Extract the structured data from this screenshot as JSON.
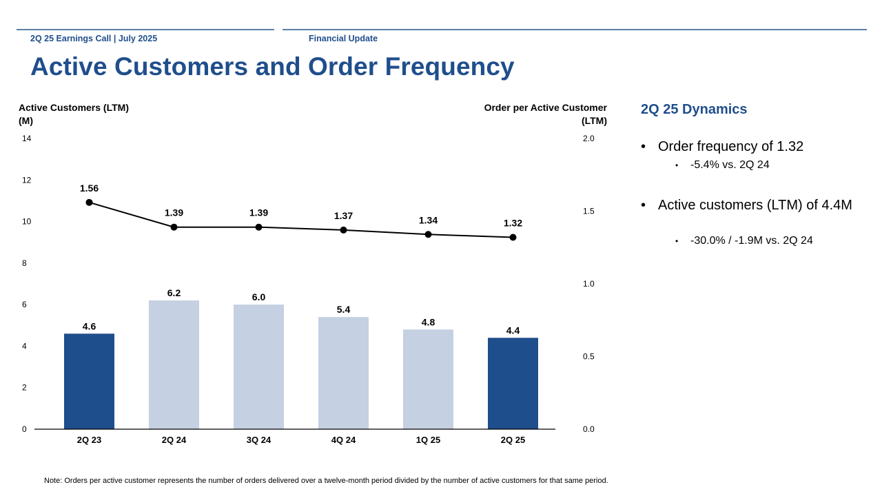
{
  "header": {
    "left_label": "2Q 25 Earnings Call | July 2025",
    "right_label": "Financial Update"
  },
  "title": "Active Customers and Order Frequency",
  "chart_data": {
    "type": "bar",
    "title": "",
    "categories": [
      "2Q 23",
      "2Q 24",
      "3Q 24",
      "4Q 24",
      "1Q 25",
      "2Q 25"
    ],
    "series": [
      {
        "name": "Active Customers (LTM)",
        "chart_type": "bar",
        "axis": "left",
        "values": [
          4.6,
          6.2,
          6.0,
          5.4,
          4.8,
          4.4
        ],
        "labels": [
          "4.6",
          "6.2",
          "6.0",
          "5.4",
          "4.8",
          "4.4"
        ],
        "highlighted": [
          true,
          false,
          false,
          false,
          false,
          true
        ]
      },
      {
        "name": "Order per Active Customer",
        "chart_type": "line",
        "axis": "right",
        "values": [
          1.56,
          1.39,
          1.39,
          1.37,
          1.34,
          1.32
        ],
        "labels": [
          "1.56",
          "1.39",
          "1.39",
          "1.37",
          "1.34",
          "1.32"
        ]
      }
    ],
    "y_left": {
      "label_line1": "Active Customers (LTM)",
      "label_line2": "(M)",
      "ylim": [
        0,
        14
      ],
      "ticks": [
        "0",
        "2",
        "4",
        "6",
        "8",
        "10",
        "12",
        "14"
      ]
    },
    "y_right": {
      "label_line1": "Order per Active Customer",
      "label_line2": "(LTM)",
      "ylim": [
        0,
        2.0
      ],
      "ticks": [
        "0.0",
        "0.5",
        "1.0",
        "1.5",
        "2.0"
      ]
    },
    "grid": false,
    "legend": "none",
    "colors": {
      "bar_highlight": "#1f4e8c",
      "bar_other": "#c5d0e2",
      "line": "#000000"
    }
  },
  "dynamics": {
    "title": "2Q 25 Dynamics",
    "bullets": [
      {
        "text": "Order frequency of 1.32",
        "sub": [
          "-5.4% vs. 2Q 24"
        ]
      },
      {
        "text": "Active customers (LTM) of 4.4M",
        "sub": [
          "-30.0% / -1.9M vs. 2Q 24"
        ]
      }
    ]
  },
  "note": "Note: Orders per active customer represents the number of orders delivered over a twelve-month period divided by the number of active customers for that same period.",
  "colors": {
    "brand": "#1f4e8c",
    "rule": "#5b7fa6"
  }
}
